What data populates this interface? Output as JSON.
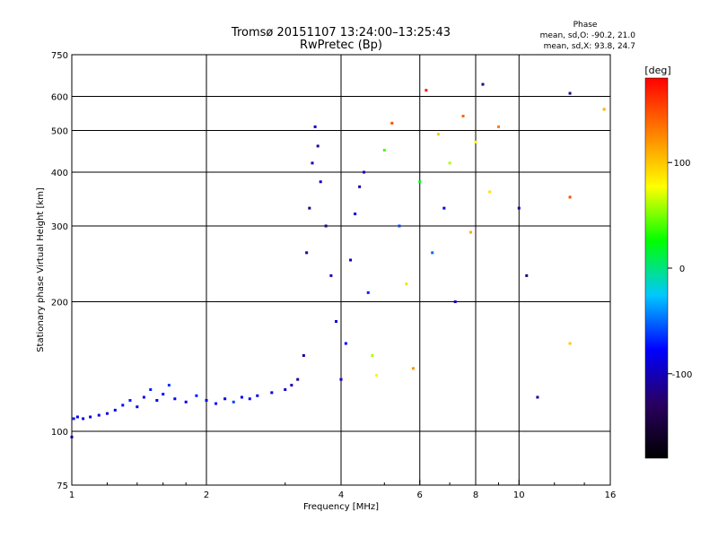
{
  "chart_data": {
    "type": "scatter",
    "title": "Tromsø 20151107 13:24:00–13:25:43",
    "subtitle": "RwPretec (Bp)",
    "xlabel": "Frequency [MHz]",
    "ylabel": "Stationary phase Virtual Height [km]",
    "x_scale": "log",
    "y_scale": "log",
    "xlim": [
      1,
      16
    ],
    "ylim": [
      75,
      750
    ],
    "x_ticks": [
      1,
      2,
      4,
      6,
      8,
      10,
      16
    ],
    "x_tick_labels": [
      "1",
      "2",
      "4",
      "6",
      "8",
      "10",
      "16"
    ],
    "y_ticks": [
      75,
      100,
      200,
      300,
      400,
      500,
      600,
      750
    ],
    "y_tick_labels": [
      "75",
      "100",
      "200",
      "300",
      "400",
      "500",
      "600",
      "750"
    ],
    "grid": true,
    "phase_stats": {
      "heading": "Phase",
      "line_o": "mean, sd,O: -90.2, 21.0",
      "line_x": "mean, sd,X: 93.8, 24.7"
    },
    "colorbar": {
      "label": "[deg]",
      "range": [
        -180,
        180
      ],
      "ticks": [
        100,
        0,
        -100
      ],
      "tick_labels": [
        "100",
        "0",
        "-100"
      ],
      "colors": [
        "#000000",
        "#2a0060",
        "#0000ff",
        "#00c8ff",
        "#00ff00",
        "#ffff00",
        "#ff8000",
        "#ff0000"
      ]
    },
    "series": [
      {
        "values": [
          {
            "x": 1.0,
            "y": 97,
            "p": -95
          },
          {
            "x": 1.01,
            "y": 107,
            "p": -70
          },
          {
            "x": 1.03,
            "y": 108,
            "p": -80
          },
          {
            "x": 1.06,
            "y": 107,
            "p": -85
          },
          {
            "x": 1.1,
            "y": 108,
            "p": -90
          },
          {
            "x": 1.15,
            "y": 109,
            "p": -85
          },
          {
            "x": 1.2,
            "y": 110,
            "p": -90
          },
          {
            "x": 1.25,
            "y": 112,
            "p": -80
          },
          {
            "x": 1.3,
            "y": 115,
            "p": -75
          },
          {
            "x": 1.35,
            "y": 118,
            "p": -70
          },
          {
            "x": 1.4,
            "y": 114,
            "p": -85
          },
          {
            "x": 1.45,
            "y": 120,
            "p": -80
          },
          {
            "x": 1.5,
            "y": 125,
            "p": -70
          },
          {
            "x": 1.55,
            "y": 118,
            "p": -85
          },
          {
            "x": 1.6,
            "y": 122,
            "p": -75
          },
          {
            "x": 1.65,
            "y": 128,
            "p": -65
          },
          {
            "x": 1.7,
            "y": 119,
            "p": -80
          },
          {
            "x": 1.8,
            "y": 117,
            "p": -85
          },
          {
            "x": 1.9,
            "y": 121,
            "p": -70
          },
          {
            "x": 2.0,
            "y": 118,
            "p": -80
          },
          {
            "x": 2.1,
            "y": 116,
            "p": -75
          },
          {
            "x": 2.2,
            "y": 119,
            "p": -85
          },
          {
            "x": 2.3,
            "y": 117,
            "p": -60
          },
          {
            "x": 2.4,
            "y": 120,
            "p": -80
          },
          {
            "x": 2.5,
            "y": 119,
            "p": -75
          },
          {
            "x": 2.6,
            "y": 121,
            "p": -85
          },
          {
            "x": 2.8,
            "y": 123,
            "p": -90
          },
          {
            "x": 3.0,
            "y": 125,
            "p": -95
          },
          {
            "x": 3.1,
            "y": 128,
            "p": -100
          },
          {
            "x": 3.2,
            "y": 132,
            "p": -110
          },
          {
            "x": 3.3,
            "y": 150,
            "p": -105
          },
          {
            "x": 3.35,
            "y": 260,
            "p": -110
          },
          {
            "x": 3.4,
            "y": 330,
            "p": -115
          },
          {
            "x": 3.45,
            "y": 420,
            "p": -105
          },
          {
            "x": 3.5,
            "y": 510,
            "p": -100
          },
          {
            "x": 3.55,
            "y": 460,
            "p": -110
          },
          {
            "x": 3.6,
            "y": 380,
            "p": -95
          },
          {
            "x": 3.7,
            "y": 300,
            "p": -120
          },
          {
            "x": 3.8,
            "y": 230,
            "p": -100
          },
          {
            "x": 3.9,
            "y": 180,
            "p": -90
          },
          {
            "x": 4.0,
            "y": 132,
            "p": -95
          },
          {
            "x": 4.1,
            "y": 160,
            "p": -80
          },
          {
            "x": 4.2,
            "y": 250,
            "p": -100
          },
          {
            "x": 4.3,
            "y": 320,
            "p": -90
          },
          {
            "x": 4.4,
            "y": 370,
            "p": -110
          },
          {
            "x": 4.5,
            "y": 400,
            "p": -100
          },
          {
            "x": 4.6,
            "y": 210,
            "p": -70
          },
          {
            "x": 4.7,
            "y": 150,
            "p": 60
          },
          {
            "x": 4.8,
            "y": 135,
            "p": 80
          },
          {
            "x": 5.0,
            "y": 450,
            "p": 40
          },
          {
            "x": 5.2,
            "y": 520,
            "p": 150
          },
          {
            "x": 5.4,
            "y": 300,
            "p": -60
          },
          {
            "x": 5.6,
            "y": 220,
            "p": 90
          },
          {
            "x": 5.8,
            "y": 140,
            "p": 120
          },
          {
            "x": 6.0,
            "y": 380,
            "p": 20
          },
          {
            "x": 6.2,
            "y": 620,
            "p": 170
          },
          {
            "x": 6.4,
            "y": 260,
            "p": -50
          },
          {
            "x": 6.6,
            "y": 490,
            "p": 100
          },
          {
            "x": 6.8,
            "y": 330,
            "p": -90
          },
          {
            "x": 7.0,
            "y": 420,
            "p": 60
          },
          {
            "x": 7.2,
            "y": 200,
            "p": -100
          },
          {
            "x": 7.5,
            "y": 540,
            "p": 140
          },
          {
            "x": 7.8,
            "y": 290,
            "p": 110
          },
          {
            "x": 8.0,
            "y": 470,
            "p": 80
          },
          {
            "x": 8.3,
            "y": 640,
            "p": -110
          },
          {
            "x": 8.6,
            "y": 360,
            "p": 90
          },
          {
            "x": 9.0,
            "y": 510,
            "p": 130
          },
          {
            "x": 10.0,
            "y": 330,
            "p": -110
          },
          {
            "x": 10.4,
            "y": 230,
            "p": -120
          },
          {
            "x": 11.0,
            "y": 120,
            "p": -110
          },
          {
            "x": 13.0,
            "y": 610,
            "p": -120
          },
          {
            "x": 13.0,
            "y": 350,
            "p": 150
          },
          {
            "x": 13.0,
            "y": 160,
            "p": 100
          },
          {
            "x": 15.5,
            "y": 560,
            "p": 110
          }
        ]
      }
    ]
  }
}
